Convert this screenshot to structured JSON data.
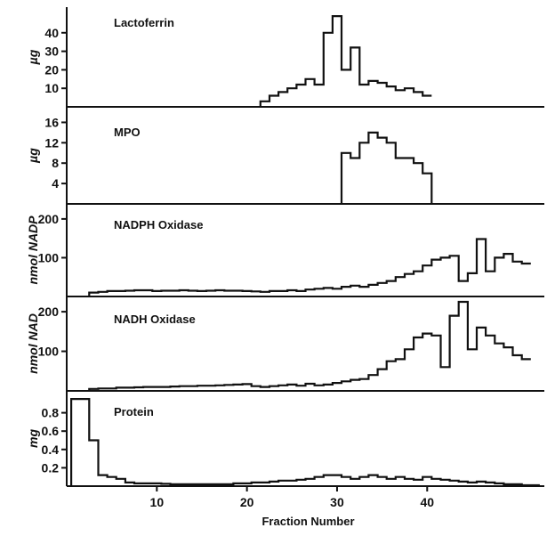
{
  "chart_data": {
    "type": "line",
    "style": "step-histogram",
    "x_axis": {
      "label": "Fraction Number",
      "range": [
        0,
        53
      ],
      "ticks": [
        10,
        20,
        30,
        40
      ]
    },
    "panels": [
      {
        "title": "Lactoferrin",
        "ylabel": "µg",
        "ylim": [
          0,
          50
        ],
        "yticks": [
          10,
          20,
          30,
          40
        ],
        "x": [
          22,
          23,
          24,
          25,
          26,
          27,
          28,
          29,
          30,
          31,
          32,
          33,
          34,
          35,
          36,
          37,
          38,
          39,
          40
        ],
        "values": [
          3,
          6,
          8,
          10,
          12,
          15,
          12,
          40,
          49,
          20,
          32,
          12,
          14,
          13,
          11,
          9,
          10,
          8,
          6
        ]
      },
      {
        "title": "MPO",
        "ylabel": "µg",
        "ylim": [
          0,
          18
        ],
        "yticks": [
          4,
          8,
          12,
          16
        ],
        "x": [
          31,
          32,
          33,
          34,
          35,
          36,
          37,
          38,
          39,
          40
        ],
        "values": [
          10,
          9,
          12,
          14,
          13,
          12,
          9,
          9,
          8,
          6
        ]
      },
      {
        "title": "NADPH  Oxidase",
        "ylabel": "nmol  NADP",
        "ylim": [
          0,
          225
        ],
        "yticks": [
          100,
          200
        ],
        "x": [
          3,
          4,
          5,
          6,
          7,
          8,
          9,
          10,
          11,
          12,
          13,
          14,
          15,
          16,
          17,
          18,
          19,
          20,
          21,
          22,
          23,
          24,
          25,
          26,
          27,
          28,
          29,
          30,
          31,
          32,
          33,
          34,
          35,
          36,
          37,
          38,
          39,
          40,
          41,
          42,
          43,
          44,
          45,
          46,
          47,
          48,
          49,
          50,
          51
        ],
        "values": [
          10,
          12,
          14,
          14,
          15,
          16,
          16,
          14,
          15,
          15,
          16,
          15,
          14,
          15,
          16,
          15,
          15,
          14,
          13,
          12,
          14,
          14,
          16,
          14,
          18,
          20,
          22,
          20,
          25,
          28,
          25,
          30,
          35,
          40,
          50,
          58,
          65,
          80,
          95,
          100,
          105,
          40,
          60,
          148,
          65,
          100,
          110,
          90,
          85
        ]
      },
      {
        "title": "NADH  Oxidase",
        "ylabel": "nmol  NAD",
        "ylim": [
          0,
          225
        ],
        "yticks": [
          100,
          200
        ],
        "x": [
          3,
          4,
          5,
          6,
          7,
          8,
          9,
          10,
          11,
          12,
          13,
          14,
          15,
          16,
          17,
          18,
          19,
          20,
          21,
          22,
          23,
          24,
          25,
          26,
          27,
          28,
          29,
          30,
          31,
          32,
          33,
          34,
          35,
          36,
          37,
          38,
          39,
          40,
          41,
          42,
          43,
          44,
          45,
          46,
          47,
          48,
          49,
          50,
          51
        ],
        "values": [
          5,
          6,
          6,
          8,
          8,
          9,
          10,
          10,
          10,
          11,
          12,
          12,
          13,
          13,
          14,
          15,
          16,
          17,
          12,
          10,
          12,
          14,
          16,
          13,
          18,
          14,
          16,
          20,
          24,
          28,
          30,
          40,
          55,
          75,
          80,
          105,
          135,
          145,
          140,
          60,
          190,
          225,
          105,
          160,
          140,
          120,
          110,
          90,
          80
        ]
      },
      {
        "title": "Protein",
        "ylabel": "mg",
        "ylim": [
          0,
          1.0
        ],
        "yticks": [
          0.2,
          0.4,
          0.6,
          0.8
        ],
        "yticklabels": [
          "0.2",
          "0.4",
          "0.6",
          "0.8"
        ],
        "x": [
          1,
          2,
          3,
          4,
          5,
          6,
          7,
          8,
          9,
          10,
          11,
          12,
          13,
          14,
          15,
          16,
          17,
          18,
          19,
          20,
          21,
          22,
          23,
          24,
          25,
          26,
          27,
          28,
          29,
          30,
          31,
          32,
          33,
          34,
          35,
          36,
          37,
          38,
          39,
          40,
          41,
          42,
          43,
          44,
          45,
          46,
          47,
          48,
          49,
          50,
          51,
          52
        ],
        "values": [
          0.95,
          0.95,
          0.5,
          0.12,
          0.1,
          0.08,
          0.04,
          0.03,
          0.03,
          0.03,
          0.025,
          0.02,
          0.02,
          0.02,
          0.02,
          0.02,
          0.02,
          0.02,
          0.03,
          0.03,
          0.04,
          0.04,
          0.05,
          0.06,
          0.06,
          0.07,
          0.08,
          0.1,
          0.12,
          0.12,
          0.1,
          0.08,
          0.1,
          0.12,
          0.1,
          0.08,
          0.1,
          0.08,
          0.07,
          0.1,
          0.08,
          0.07,
          0.06,
          0.05,
          0.04,
          0.05,
          0.04,
          0.03,
          0.02,
          0.02,
          0.01,
          0.01
        ]
      }
    ]
  }
}
